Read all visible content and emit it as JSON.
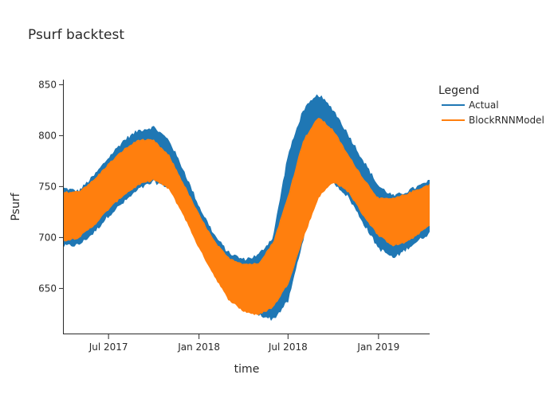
{
  "chart_data": {
    "type": "line",
    "title": "Psurf backtest",
    "xlabel": "time",
    "ylabel": "Psurf",
    "x_range": [
      "2017-04-01",
      "2019-04-15"
    ],
    "ylim": [
      605,
      855
    ],
    "x_ticks": [
      {
        "date": "2017-07-01",
        "label": "Jul 2017"
      },
      {
        "date": "2018-01-01",
        "label": "Jan 2018"
      },
      {
        "date": "2018-07-01",
        "label": "Jul 2018"
      },
      {
        "date": "2019-01-01",
        "label": "Jan 2019"
      }
    ],
    "y_ticks": [
      650,
      700,
      750,
      800,
      850
    ],
    "grid": false,
    "legend": {
      "title": "Legend",
      "placement": "top-right"
    },
    "series": [
      {
        "name": "Actual",
        "color": "#1f77b4",
        "render": "band",
        "x": [
          "2017-04-01",
          "2017-05-01",
          "2017-06-01",
          "2017-07-01",
          "2017-08-01",
          "2017-09-01",
          "2017-10-01",
          "2017-11-01",
          "2017-12-01",
          "2018-01-01",
          "2018-02-01",
          "2018-03-01",
          "2018-04-01",
          "2018-05-01",
          "2018-06-01",
          "2018-07-01",
          "2018-08-01",
          "2018-09-01",
          "2018-10-01",
          "2018-11-01",
          "2018-12-01",
          "2019-01-01",
          "2019-02-01",
          "2019-03-01",
          "2019-04-15"
        ],
        "low": [
          692,
          693,
          705,
          722,
          735,
          748,
          755,
          750,
          730,
          700,
          672,
          650,
          640,
          625,
          620,
          638,
          700,
          750,
          755,
          740,
          715,
          690,
          680,
          690,
          705
        ],
        "high": [
          748,
          745,
          760,
          778,
          795,
          805,
          808,
          795,
          765,
          730,
          702,
          685,
          678,
          682,
          700,
          780,
          825,
          840,
          825,
          800,
          775,
          750,
          740,
          745,
          755
        ]
      },
      {
        "name": "BlockRNNModel",
        "color": "#ff7f0e",
        "render": "band",
        "x": [
          "2017-04-01",
          "2017-05-01",
          "2017-06-01",
          "2017-07-01",
          "2017-08-01",
          "2017-09-01",
          "2017-10-01",
          "2017-11-01",
          "2017-12-01",
          "2018-01-01",
          "2018-02-01",
          "2018-03-01",
          "2018-04-01",
          "2018-05-01",
          "2018-06-01",
          "2018-07-01",
          "2018-08-01",
          "2018-09-01",
          "2018-10-01",
          "2018-11-01",
          "2018-12-01",
          "2019-01-01",
          "2019-02-01",
          "2019-03-01",
          "2019-04-15"
        ],
        "low": [
          697,
          700,
          712,
          728,
          742,
          752,
          757,
          748,
          722,
          690,
          663,
          640,
          628,
          624,
          632,
          655,
          700,
          740,
          755,
          745,
          722,
          702,
          692,
          696,
          712
        ],
        "high": [
          744,
          745,
          756,
          772,
          786,
          796,
          795,
          780,
          752,
          722,
          696,
          680,
          674,
          674,
          695,
          740,
          795,
          818,
          805,
          780,
          758,
          738,
          738,
          743,
          752
        ]
      }
    ]
  }
}
